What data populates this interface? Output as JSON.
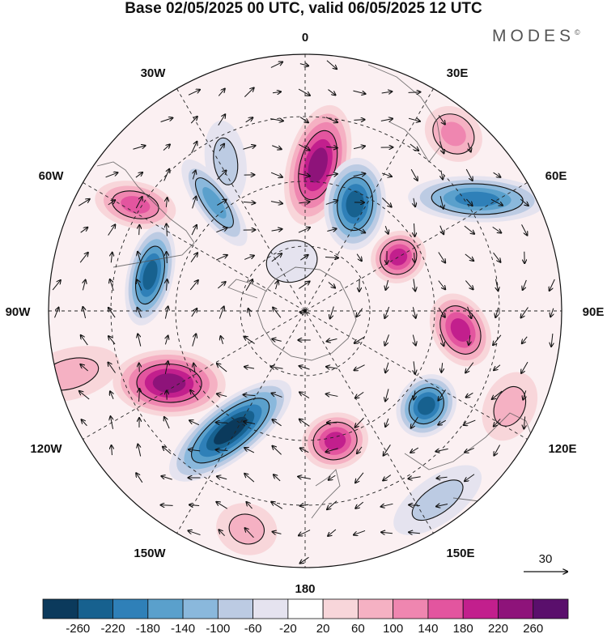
{
  "title": "Base 02/05/2025 00 UTC, valid 06/05/2025 12 UTC",
  "brand": "MODES",
  "brand_mark": "©",
  "longitude_labels": {
    "top": "0",
    "bottom": "180",
    "left": "90W",
    "right": "90E",
    "w30": "30W",
    "e30": "30E",
    "w60": "60W",
    "e60": "60E",
    "w120": "120W",
    "e120": "120E",
    "w150": "150W",
    "e150": "150E"
  },
  "vector_reference": {
    "label": "30"
  },
  "colorbar": {
    "colors": [
      "#0b3a5c",
      "#17618f",
      "#2f80b8",
      "#5aa0cc",
      "#8ab8dc",
      "#bccbe3",
      "#e5e3ef",
      "#ffffff",
      "#f8d6da",
      "#f5b1c3",
      "#ef86b0",
      "#e3559f",
      "#c21f8d",
      "#8e137a",
      "#5a0f6c"
    ],
    "ticks": [
      "-260",
      "-220",
      "-180",
      "-140",
      "-100",
      "-60",
      "-20",
      "20",
      "60",
      "100",
      "140",
      "180",
      "220",
      "260"
    ]
  },
  "anomalies": [
    {
      "lon": 5,
      "r": 0.57,
      "v": 240,
      "sx": 0.12,
      "sy": 0.24,
      "rot": 10
    },
    {
      "lon": 25,
      "r": 0.46,
      "v": -230,
      "sx": 0.12,
      "sy": 0.18,
      "rot": -20
    },
    {
      "lon": -28,
      "r": 0.66,
      "v": -90,
      "sx": 0.08,
      "sy": 0.16,
      "rot": 20
    },
    {
      "lon": -40,
      "r": 0.55,
      "v": -140,
      "sx": 0.07,
      "sy": 0.2,
      "rot": 5
    },
    {
      "lon": -58,
      "r": 0.78,
      "v": 160,
      "sx": 0.09,
      "sy": 0.16,
      "rot": -20
    },
    {
      "lon": -77,
      "r": 0.62,
      "v": -230,
      "sx": 0.2,
      "sy": 0.09,
      "rot": 0
    },
    {
      "lon": 60,
      "r": 0.42,
      "v": 200,
      "sx": 0.1,
      "sy": 0.11,
      "rot": 0
    },
    {
      "lon": 57,
      "r": 0.8,
      "v": -200,
      "sx": 0.09,
      "sy": 0.27,
      "rot": 35
    },
    {
      "lon": 97,
      "r": 0.61,
      "v": 180,
      "sx": 0.15,
      "sy": 0.11,
      "rot": -35
    },
    {
      "lon": 128,
      "r": 0.6,
      "v": -240,
      "sx": 0.13,
      "sy": 0.11,
      "rot": 0
    },
    {
      "lon": 167,
      "r": 0.52,
      "v": 200,
      "sx": 0.13,
      "sy": 0.11,
      "rot": 0
    },
    {
      "lon": -148,
      "r": 0.55,
      "v": -280,
      "sx": 0.11,
      "sy": 0.29,
      "rot": 20
    },
    {
      "lon": -118,
      "r": 0.6,
      "v": 240,
      "sx": 0.13,
      "sy": 0.22,
      "rot": 30
    },
    {
      "lon": 115,
      "r": 0.88,
      "v": 90,
      "sx": 0.14,
      "sy": 0.1,
      "rot": 0
    },
    {
      "lon": -105,
      "r": 0.95,
      "v": 90,
      "sx": 0.1,
      "sy": 0.2,
      "rot": 0
    },
    {
      "lon": 145,
      "r": 0.9,
      "v": -60,
      "sx": 0.2,
      "sy": 0.09,
      "rot": 0
    },
    {
      "lon": -15,
      "r": 0.2,
      "v": -40,
      "sx": 0.1,
      "sy": 0.08,
      "rot": 0
    },
    {
      "lon": 40,
      "r": 0.9,
      "v": 110,
      "sx": 0.12,
      "sy": 0.1,
      "rot": 0
    },
    {
      "lon": -165,
      "r": 0.88,
      "v": 80,
      "sx": 0.12,
      "sy": 0.1,
      "rot": 0
    }
  ]
}
